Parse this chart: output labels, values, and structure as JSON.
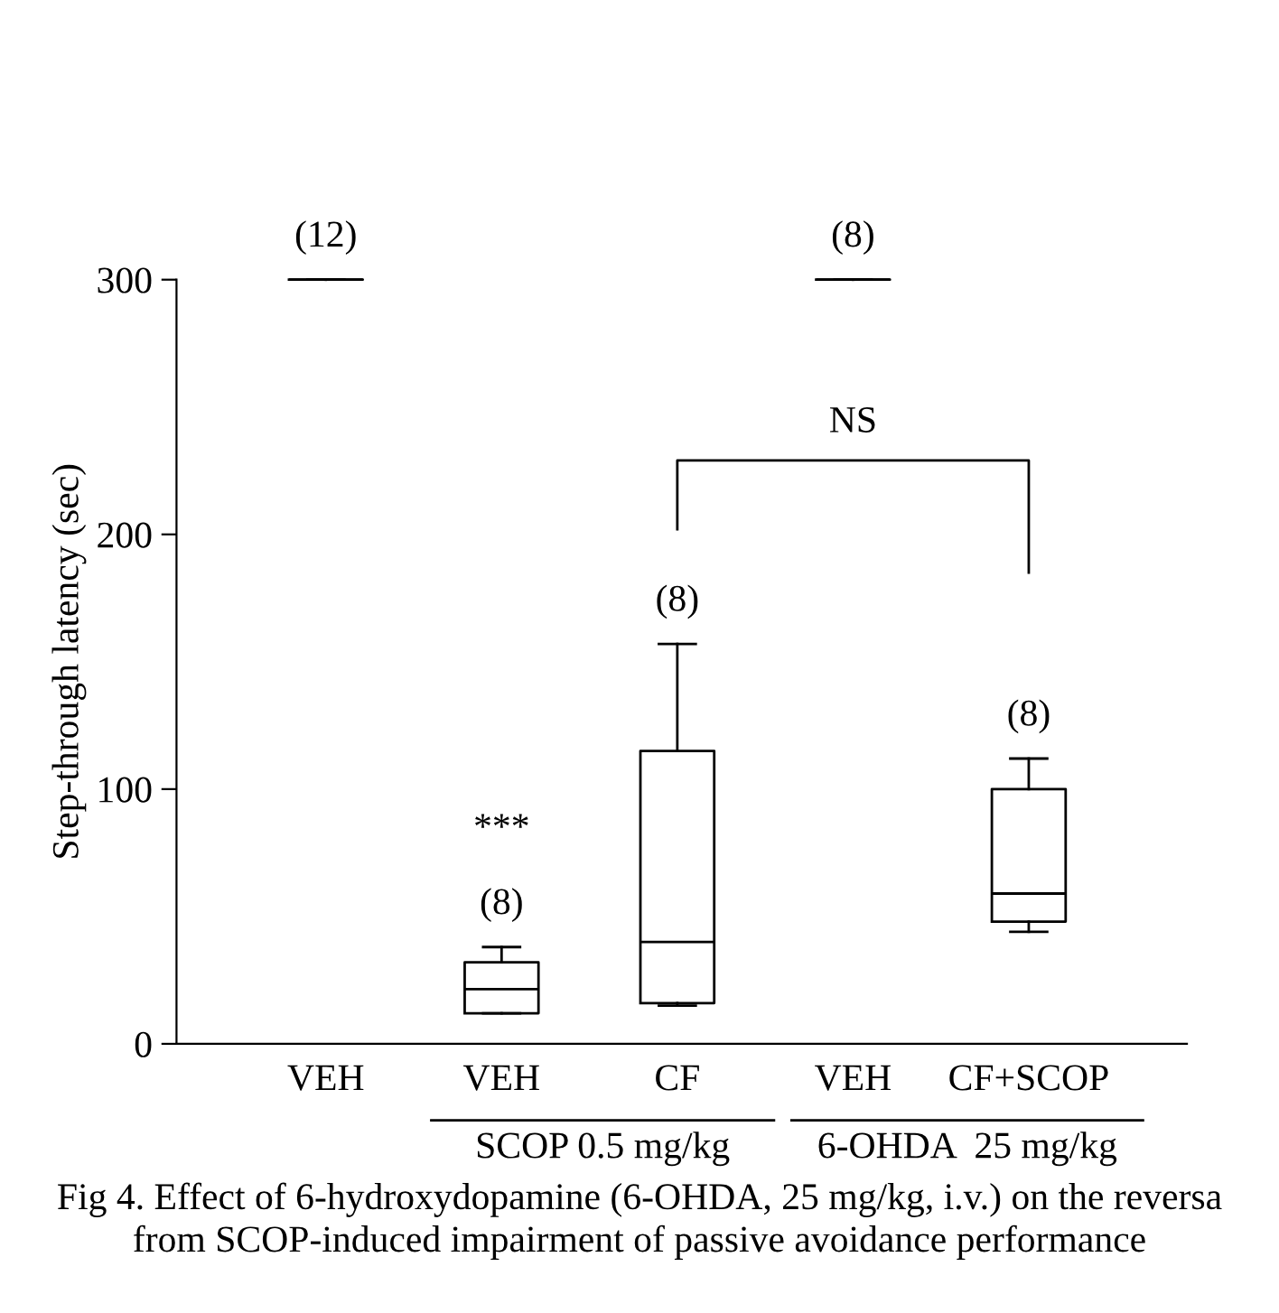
{
  "chart_data": {
    "type": "box",
    "ylabel": "Step-through latency (sec)",
    "categories": [
      "VEH",
      "VEH",
      "CF",
      "VEH",
      "CF+SCOP"
    ],
    "boxes": [
      {
        "low": 300,
        "q1": 300,
        "median": 300,
        "q3": 300,
        "high": 300
      },
      {
        "low": 12,
        "q1": 12,
        "median": 21.5,
        "q3": 32,
        "high": 38
      },
      {
        "low": 15,
        "q1": 16,
        "median": 40,
        "q3": 115,
        "high": 157
      },
      {
        "low": 300,
        "q1": 300,
        "median": 300,
        "q3": 300,
        "high": 300
      },
      {
        "low": 44,
        "q1": 48,
        "median": 59,
        "q3": 100,
        "high": 112
      }
    ],
    "ylim": [
      0,
      300
    ],
    "yticks": [
      0,
      100,
      200,
      300
    ],
    "grid": false,
    "legend": false,
    "annotations": [
      "(12)",
      "(8)",
      "(8)",
      "(8)",
      "(8)",
      "***",
      "NS",
      "SCOP 0.5 mg/kg",
      "6-OHDA  25 mg/kg",
      "Fig 4. Effect of 6-hydroxydopamine (6-OHDA, 25 mg/kg, i.v.) on the reversa\nfrom SCOP-induced impairment of passive avoidance performance"
    ]
  }
}
